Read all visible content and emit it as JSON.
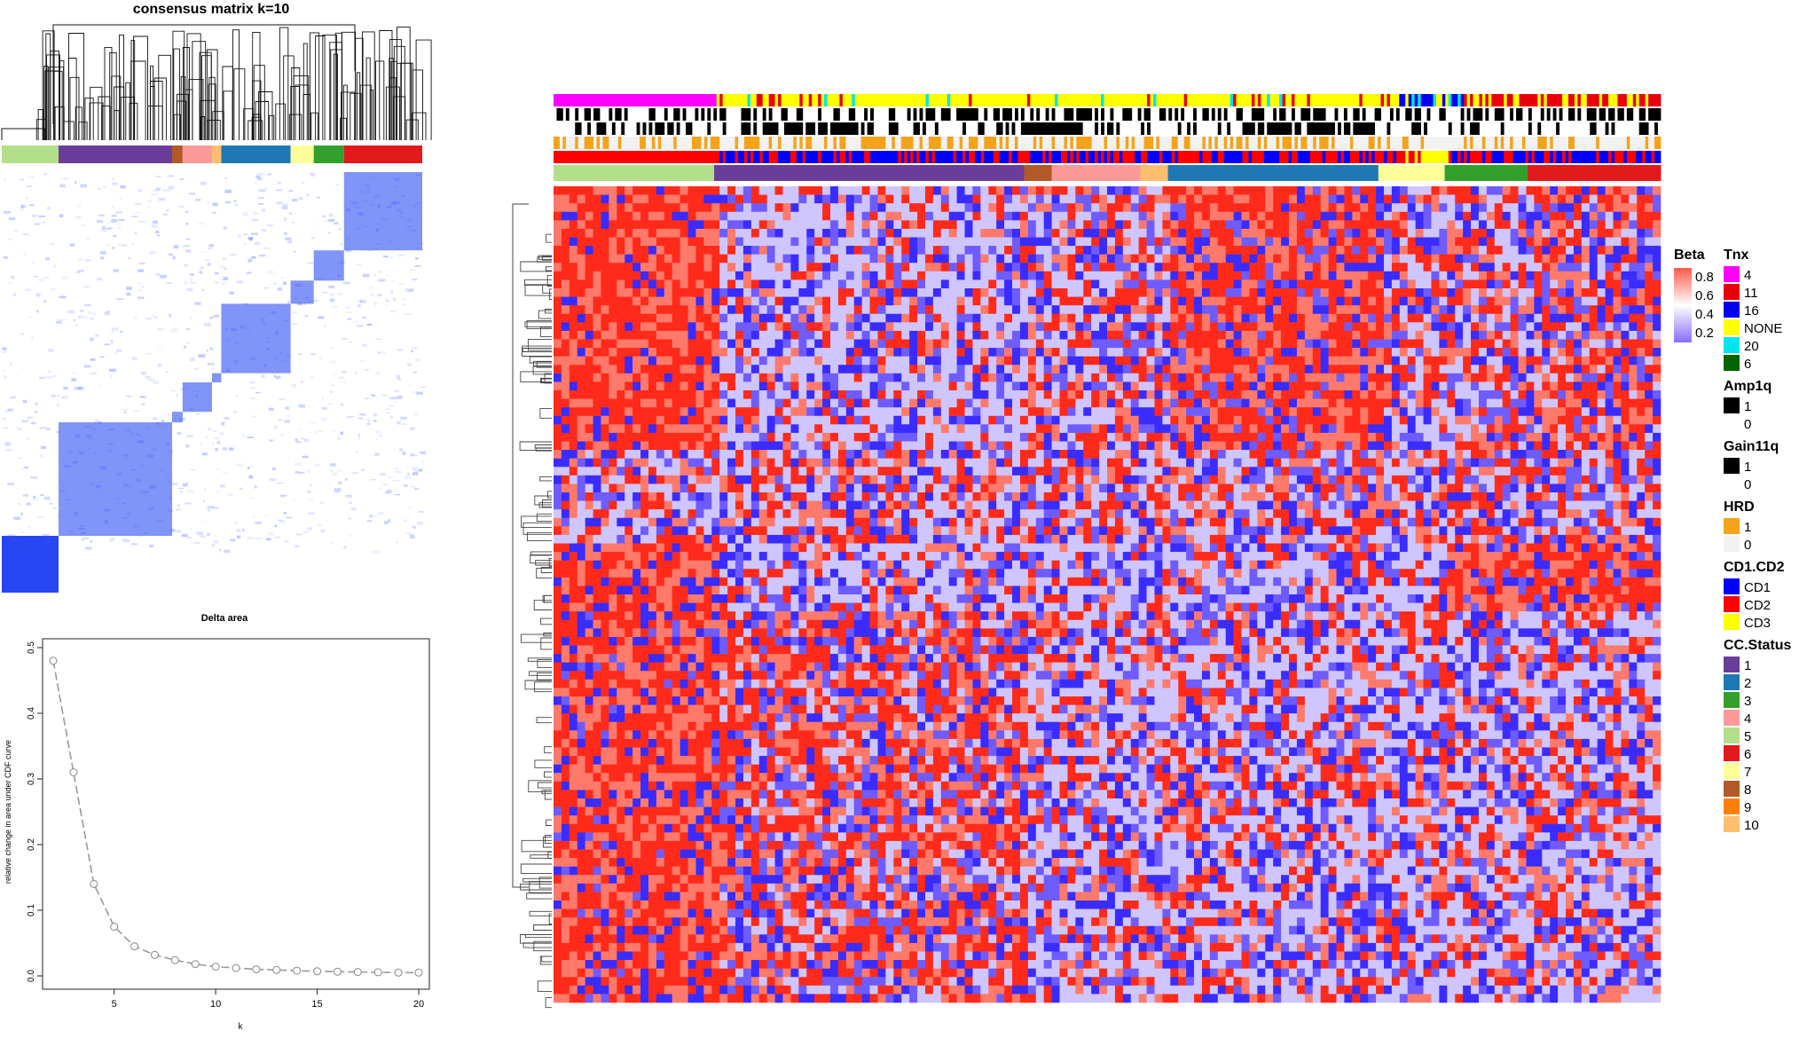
{
  "consensus": {
    "title": "consensus matrix k=10",
    "cluster_order": [
      "5",
      "1",
      "8",
      "4",
      "10",
      "2",
      "7",
      "3",
      "6"
    ],
    "cluster_colors": {
      "1": "#6a3d9a",
      "2": "#1f78b4",
      "3": "#33a02c",
      "4": "#fb9a99",
      "5": "#b2df8a",
      "6": "#e31a1c",
      "7": "#ffff99",
      "8": "#b15928",
      "9": "#ff7f00",
      "10": "#fdbf6f"
    }
  },
  "chart_data": [
    {
      "type": "line",
      "title": "Delta area",
      "xlabel": "k",
      "ylabel": "relative change in area under CDF curve",
      "x": [
        2,
        3,
        4,
        5,
        6,
        7,
        8,
        9,
        10,
        11,
        12,
        13,
        14,
        15,
        16,
        17,
        18,
        19,
        20
      ],
      "y": [
        0.48,
        0.31,
        0.14,
        0.075,
        0.045,
        0.032,
        0.024,
        0.018,
        0.014,
        0.012,
        0.01,
        0.009,
        0.008,
        0.007,
        0.0065,
        0.006,
        0.0055,
        0.005,
        0.005
      ],
      "xlim": [
        2,
        20
      ],
      "ylim": [
        0,
        0.5
      ],
      "xticks": [
        "5",
        "10",
        "15",
        "20"
      ],
      "yticks": [
        "0.0",
        "0.1",
        "0.2",
        "0.3",
        "0.4",
        "0.5"
      ],
      "grid": false
    },
    {
      "type": "heatmap",
      "title": "",
      "color_scale": {
        "name": "Beta",
        "ticks": [
          "0.8",
          "0.6",
          "0.4",
          "0.2"
        ],
        "low": "#4b3cff",
        "mid": "#ffffff",
        "high": "#ff2a1a"
      },
      "column_clusters": [
        "5",
        "1",
        "8",
        "4",
        "10",
        "2",
        "7",
        "3",
        "6"
      ],
      "annotation_tracks": [
        "Tnx",
        "Amp1q",
        "Gain11q",
        "HRD",
        "CD1.CD2",
        "CC.Status"
      ]
    }
  ],
  "legend": [
    {
      "title": "Beta",
      "type": "gradient",
      "ticks": [
        "0.8",
        "0.6",
        "0.4",
        "0.2"
      ]
    },
    {
      "title": "Tnx",
      "items": [
        {
          "label": "4",
          "color": "#ff00ff"
        },
        {
          "label": "11",
          "color": "#e8000b"
        },
        {
          "label": "16",
          "color": "#0000ee"
        },
        {
          "label": "NONE",
          "color": "#ffff00"
        },
        {
          "label": "20",
          "color": "#00e5ee"
        },
        {
          "label": "6",
          "color": "#006400"
        }
      ]
    },
    {
      "title": "Amp1q",
      "items": [
        {
          "label": "1",
          "color": "#000000"
        },
        {
          "label": "0",
          "color": "#ffffff"
        }
      ]
    },
    {
      "title": "Gain11q",
      "items": [
        {
          "label": "1",
          "color": "#000000"
        },
        {
          "label": "0",
          "color": "#ffffff"
        }
      ]
    },
    {
      "title": "HRD",
      "items": [
        {
          "label": "1",
          "color": "#f5a31a"
        },
        {
          "label": "0",
          "color": "#f2f2f2"
        }
      ]
    },
    {
      "title": "CD1.CD2",
      "items": [
        {
          "label": "CD1",
          "color": "#0000ff"
        },
        {
          "label": "CD2",
          "color": "#ff0000"
        },
        {
          "label": "CD3",
          "color": "#ffff00"
        }
      ]
    },
    {
      "title": "CC.Status",
      "items": [
        {
          "label": "1",
          "color": "#6a3d9a"
        },
        {
          "label": "2",
          "color": "#1f78b4"
        },
        {
          "label": "3",
          "color": "#33a02c"
        },
        {
          "label": "4",
          "color": "#fb9a99"
        },
        {
          "label": "5",
          "color": "#b2df8a"
        },
        {
          "label": "6",
          "color": "#e31a1c"
        },
        {
          "label": "7",
          "color": "#ffff99"
        },
        {
          "label": "8",
          "color": "#b15928"
        },
        {
          "label": "9",
          "color": "#ff7f00"
        },
        {
          "label": "10",
          "color": "#fdbf6f"
        }
      ]
    }
  ]
}
